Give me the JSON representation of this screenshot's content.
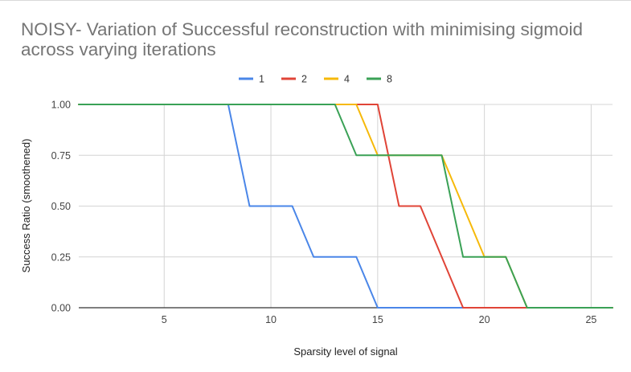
{
  "chart_data": {
    "type": "line",
    "title": "NOISY- Variation of Successful reconstruction with minimising sigmoid across varying iterations",
    "xlabel": "Sparsity level of signal",
    "ylabel": "Success Ratio (smoothened)",
    "xlim": [
      1,
      26
    ],
    "ylim": [
      0,
      1
    ],
    "x_ticks": [
      5,
      10,
      15,
      20,
      25
    ],
    "y_ticks": [
      "0.00",
      "0.25",
      "0.50",
      "0.75",
      "1.00"
    ],
    "grid": true,
    "legend_position": "top",
    "x": [
      1,
      2,
      3,
      4,
      5,
      6,
      7,
      8,
      9,
      10,
      11,
      12,
      13,
      14,
      15,
      16,
      17,
      18,
      19,
      20,
      21,
      22,
      23,
      24,
      25,
      26
    ],
    "series": [
      {
        "name": "1",
        "color": "#4a86e8",
        "values": [
          1,
          1,
          1,
          1,
          1,
          1,
          1,
          1,
          0.5,
          0.5,
          0.5,
          0.25,
          0.25,
          0.25,
          0,
          0,
          0,
          0,
          0,
          0,
          0,
          0,
          0,
          0,
          0,
          0
        ]
      },
      {
        "name": "2",
        "color": "#e04437",
        "values": [
          1,
          1,
          1,
          1,
          1,
          1,
          1,
          1,
          1,
          1,
          1,
          1,
          1,
          1,
          1,
          0.5,
          0.5,
          0.25,
          0,
          0,
          0,
          0,
          0,
          0,
          0,
          0
        ]
      },
      {
        "name": "4",
        "color": "#f6b90a",
        "values": [
          1,
          1,
          1,
          1,
          1,
          1,
          1,
          1,
          1,
          1,
          1,
          1,
          1,
          1,
          0.75,
          0.75,
          0.75,
          0.75,
          0.5,
          0.25,
          0.25,
          0,
          0,
          0,
          0,
          0
        ]
      },
      {
        "name": "8",
        "color": "#3aa156",
        "values": [
          1,
          1,
          1,
          1,
          1,
          1,
          1,
          1,
          1,
          1,
          1,
          1,
          1,
          0.75,
          0.75,
          0.75,
          0.75,
          0.75,
          0.25,
          0.25,
          0.25,
          0,
          0,
          0,
          0,
          0
        ]
      }
    ]
  }
}
